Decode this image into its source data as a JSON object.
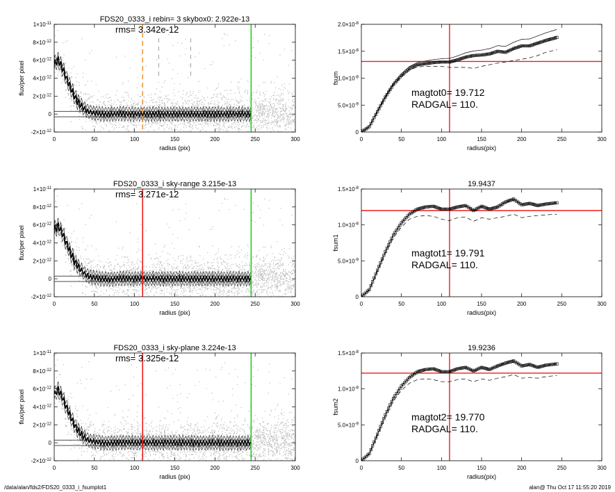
{
  "colors": {
    "scatter": "#b4b4b4",
    "profile": "#000000",
    "red": "#ee1c1c",
    "green": "#22cc22",
    "orange": "#ee9944",
    "axis": "#000000"
  },
  "footer": {
    "left": "/data/alan/fds2/FDS20_0333_i_fsumplot1",
    "right": "alan@  Thu Oct 17 11:55:20 2019"
  },
  "chart_data": [
    {
      "type": "scatter",
      "title": "FDS20_0333_i rebin= 3    skybox0:  2.922e-13",
      "annotation": "rms= 3.342e-12",
      "xlabel": "radius (pix)",
      "ylabel": "flux/per pixel",
      "xlim": [
        0,
        300
      ],
      "ylim": [
        -2e-12,
        1e-11
      ],
      "xticks": [
        "0",
        "50",
        "100",
        "150",
        "200",
        "250",
        "300"
      ],
      "yticks": [
        "-2×10⁻¹²",
        "0",
        "2×10⁻¹²",
        "4×10⁻¹²",
        "6×10⁻¹²",
        "8×10⁻¹²",
        "1×10⁻¹¹"
      ],
      "vlines": [
        {
          "x": 110,
          "color": "orange",
          "style": "dashed"
        },
        {
          "x": 245,
          "color": "green",
          "style": "solid"
        },
        {
          "x": 130,
          "color": "gray",
          "style": "dashed"
        },
        {
          "x": 170,
          "color": "gray",
          "style": "dashed"
        }
      ],
      "profile_r": [
        0,
        5,
        10,
        15,
        20,
        25,
        30,
        35,
        40,
        45,
        50,
        60,
        70,
        80,
        100,
        120,
        150,
        180,
        200,
        220,
        245
      ],
      "profile_v": [
        5.5e-12,
        6e-12,
        5.2e-12,
        4e-12,
        3e-12,
        2e-12,
        1.3e-12,
        8e-13,
        4e-13,
        2e-13,
        1e-13,
        0.0,
        -5e-14,
        5e-14,
        0.0,
        0.0,
        0.0,
        0.0,
        0.0,
        0.0,
        0.0
      ]
    },
    {
      "type": "line",
      "title": "",
      "xlabel": "radius(pix)",
      "ylabel": "fsum",
      "xlim": [
        0,
        300
      ],
      "ylim": [
        0,
        2e-08
      ],
      "xticks": [
        "0",
        "50",
        "100",
        "150",
        "200",
        "250",
        "300"
      ],
      "yticks": [
        "0",
        "5.0×10⁻⁹",
        "1.0×10⁻⁸",
        "1.5×10⁻⁸",
        "2.0×10⁻⁸"
      ],
      "hline": 1.31e-08,
      "vline": 110,
      "text1": "magtot0=  19.712",
      "text2": "RADGAL=    110.",
      "x": [
        0,
        10,
        20,
        30,
        40,
        50,
        60,
        70,
        80,
        90,
        100,
        110,
        120,
        130,
        140,
        150,
        160,
        170,
        180,
        190,
        200,
        210,
        220,
        230,
        245
      ],
      "y": [
        0,
        1e-09,
        3.8e-09,
        6.5e-09,
        8.8e-09,
        1.05e-08,
        1.18e-08,
        1.25e-08,
        1.27e-08,
        1.29e-08,
        1.3e-08,
        1.3e-08,
        1.34e-08,
        1.39e-08,
        1.42e-08,
        1.43e-08,
        1.45e-08,
        1.5e-08,
        1.48e-08,
        1.55e-08,
        1.6e-08,
        1.6e-08,
        1.65e-08,
        1.7e-08,
        1.76e-08
      ],
      "dashed_y": [
        0,
        1e-09,
        3.7e-09,
        6.4e-09,
        8.7e-09,
        1.03e-08,
        1.15e-08,
        1.21e-08,
        1.22e-08,
        1.22e-08,
        1.22e-08,
        1.2e-08,
        1.2e-08,
        1.2e-08,
        1.18e-08,
        1.22e-08,
        1.25e-08,
        1.28e-08,
        1.3e-08,
        1.33e-08,
        1.35e-08,
        1.38e-08,
        1.42e-08,
        1.48e-08,
        1.53e-08
      ]
    },
    {
      "type": "scatter",
      "title": "FDS20_0333_i sky-range  3.215e-13",
      "annotation": "rms= 3.271e-12",
      "xlabel": "radius (pix)",
      "ylabel": "flux/per pixel",
      "xlim": [
        0,
        300
      ],
      "ylim": [
        -2e-12,
        1e-11
      ],
      "xticks": [
        "0",
        "50",
        "100",
        "150",
        "200",
        "250",
        "300"
      ],
      "yticks": [
        "-2×10⁻¹²",
        "0",
        "2×10⁻¹²",
        "4×10⁻¹²",
        "6×10⁻¹²",
        "8×10⁻¹²",
        "1×10⁻¹¹"
      ],
      "vlines": [
        {
          "x": 110,
          "color": "red",
          "style": "solid"
        },
        {
          "x": 245,
          "color": "green",
          "style": "solid"
        }
      ],
      "profile_r": [
        0,
        5,
        10,
        15,
        20,
        25,
        30,
        35,
        40,
        45,
        50,
        60,
        70,
        80,
        100,
        120,
        150,
        180,
        200,
        220,
        245
      ],
      "profile_v": [
        5.4e-12,
        5.9e-12,
        5.1e-12,
        4e-12,
        3e-12,
        2e-12,
        1.3e-12,
        8e-13,
        4e-13,
        2e-13,
        1e-13,
        0.0,
        -5e-14,
        5e-14,
        0.0,
        0.0,
        0.0,
        0.0,
        0.0,
        0.0,
        0.0
      ]
    },
    {
      "type": "line",
      "title": "19.9437",
      "xlabel": "radius(pix)",
      "ylabel": "fsum1",
      "xlim": [
        0,
        300
      ],
      "ylim": [
        0,
        1.5e-08
      ],
      "xticks": [
        "0",
        "50",
        "100",
        "150",
        "200",
        "250",
        "300"
      ],
      "yticks": [
        "0",
        "5.0×10⁻⁹",
        "1.0×10⁻⁸",
        "1.5×10⁻⁸"
      ],
      "hline": 1.2e-08,
      "vline": 110,
      "text1": "magtot1=  19.791",
      "text2": "RADGAL=    110.",
      "x": [
        0,
        10,
        20,
        30,
        40,
        50,
        60,
        70,
        80,
        90,
        100,
        110,
        120,
        130,
        140,
        150,
        160,
        170,
        180,
        190,
        200,
        210,
        220,
        230,
        245
      ],
      "y": [
        0,
        1e-09,
        3.7e-09,
        6.3e-09,
        8.6e-09,
        1.03e-08,
        1.15e-08,
        1.22e-08,
        1.25e-08,
        1.26e-08,
        1.22e-08,
        1.22e-08,
        1.25e-08,
        1.27e-08,
        1.2e-08,
        1.26e-08,
        1.22e-08,
        1.25e-08,
        1.32e-08,
        1.36e-08,
        1.28e-08,
        1.3e-08,
        1.27e-08,
        1.29e-08,
        1.31e-08
      ],
      "dashed_y": [
        0,
        9e-10,
        3.5e-09,
        6e-09,
        8.2e-09,
        9.7e-09,
        1.08e-08,
        1.12e-08,
        1.13e-08,
        1.12e-08,
        1.08e-08,
        1.06e-08,
        1.1e-08,
        1.11e-08,
        1.05e-08,
        1.1e-08,
        1.08e-08,
        1.1e-08,
        1.12e-08,
        1.15e-08,
        1.1e-08,
        1.12e-08,
        1.13e-08,
        1.14e-08,
        1.15e-08
      ]
    },
    {
      "type": "scatter",
      "title": "FDS20_0333_i sky-plane  3.224e-13",
      "annotation": "rms= 3.325e-12",
      "xlabel": "radius (pix)",
      "ylabel": "flux/per pixel",
      "xlim": [
        0,
        300
      ],
      "ylim": [
        -2e-12,
        1e-11
      ],
      "xticks": [
        "0",
        "50",
        "100",
        "150",
        "200",
        "250",
        "300"
      ],
      "yticks": [
        "-2×10⁻¹²",
        "0",
        "2×10⁻¹²",
        "4×10⁻¹²",
        "6×10⁻¹²",
        "8×10⁻¹²",
        "1×10⁻¹¹"
      ],
      "vlines": [
        {
          "x": 110,
          "color": "red",
          "style": "solid"
        },
        {
          "x": 245,
          "color": "green",
          "style": "solid"
        }
      ],
      "profile_r": [
        0,
        5,
        10,
        15,
        20,
        25,
        30,
        35,
        40,
        45,
        50,
        60,
        70,
        80,
        100,
        120,
        150,
        180,
        200,
        220,
        245
      ],
      "profile_v": [
        5.4e-12,
        5.9e-12,
        5.1e-12,
        4e-12,
        3e-12,
        2e-12,
        1.3e-12,
        8e-13,
        4e-13,
        2e-13,
        1e-13,
        0.0,
        -5e-14,
        5e-14,
        0.0,
        0.0,
        0.0,
        0.0,
        0.0,
        0.0,
        0.0
      ]
    },
    {
      "type": "line",
      "title": "19.9236",
      "xlabel": "radius(pix)",
      "ylabel": "fsum2",
      "xlim": [
        0,
        300
      ],
      "ylim": [
        0,
        1.5e-08
      ],
      "xticks": [
        "0",
        "50",
        "100",
        "150",
        "200",
        "250",
        "300"
      ],
      "yticks": [
        "0",
        "5.0×10⁻⁹",
        "1.0×10⁻⁸",
        "1.5×10⁻⁸"
      ],
      "hline": 1.22e-08,
      "vline": 110,
      "text1": "magtot2=  19.770",
      "text2": "RADGAL=    110.",
      "x": [
        0,
        10,
        20,
        30,
        40,
        50,
        60,
        70,
        80,
        90,
        100,
        110,
        120,
        130,
        140,
        150,
        160,
        170,
        180,
        190,
        200,
        210,
        220,
        230,
        245
      ],
      "y": [
        0,
        1e-09,
        3.7e-09,
        6.4e-09,
        8.7e-09,
        1.04e-08,
        1.16e-08,
        1.24e-08,
        1.27e-08,
        1.28e-08,
        1.24e-08,
        1.24e-08,
        1.28e-08,
        1.3e-08,
        1.25e-08,
        1.3e-08,
        1.27e-08,
        1.32e-08,
        1.36e-08,
        1.39e-08,
        1.32e-08,
        1.34e-08,
        1.3e-08,
        1.33e-08,
        1.35e-08
      ],
      "dashed_y": [
        0,
        9e-10,
        3.5e-09,
        6e-09,
        8.3e-09,
        9.8e-09,
        1.08e-08,
        1.13e-08,
        1.14e-08,
        1.13e-08,
        1.1e-08,
        1.1e-08,
        1.13e-08,
        1.14e-08,
        1.1e-08,
        1.14e-08,
        1.12e-08,
        1.15e-08,
        1.17e-08,
        1.2e-08,
        1.15e-08,
        1.16e-08,
        1.15e-08,
        1.17e-08,
        1.19e-08
      ]
    }
  ]
}
